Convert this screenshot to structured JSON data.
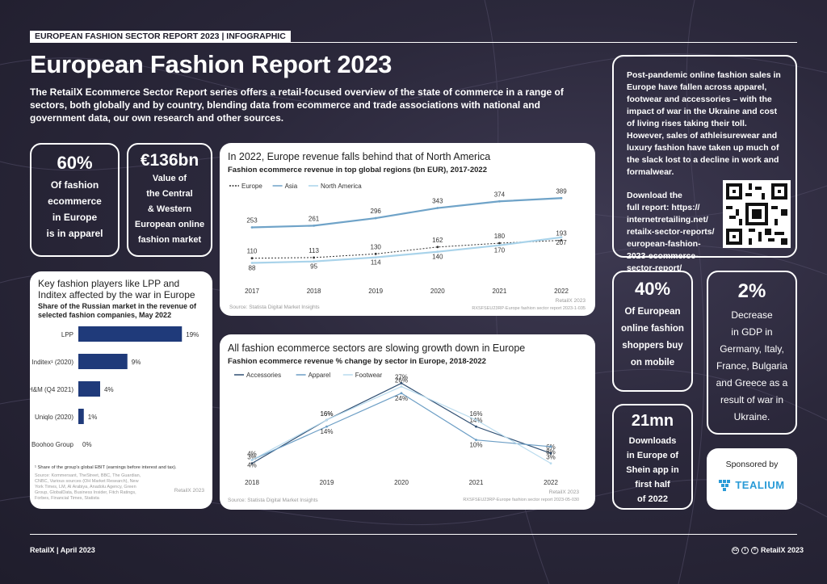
{
  "header": {
    "tag": "EUROPEAN FASHION SECTOR REPORT 2023 | INFOGRAPHIC",
    "title": "European Fashion Report 2023",
    "intro": "The RetailX Ecommerce Sector Report series offers a retail-focused overview of the state of commerce in a range of sectors, both globally and by country, blending data from ecommerce and trade associations with national and government data, our own research and other sources."
  },
  "stats": {
    "apparel": {
      "value": "60%",
      "lines": [
        "Of fashion",
        "ecommerce",
        "in Europe",
        "is in apparel"
      ]
    },
    "market": {
      "value": "€136bn",
      "lines": [
        "Value of",
        "the Central",
        "& Western",
        "European online",
        "fashion market"
      ]
    },
    "mobile": {
      "value": "40%",
      "lines": [
        "Of European",
        "online fashion",
        "shoppers buy",
        "on mobile"
      ]
    },
    "gdp": {
      "value": "2%",
      "lines": [
        "Decrease",
        "in GDP in",
        "Germany, Italy,",
        "France, Bulgaria",
        "and Greece as a",
        "result of war in",
        "Ukraine."
      ]
    },
    "shein": {
      "value": "21mn",
      "lines": [
        "Downloads",
        "in Europe of",
        "Shein app in",
        "first half",
        "of 2022"
      ]
    }
  },
  "sidebar": {
    "text": "Post-pandemic online fashion sales in Europe have fallen across apparel, footwear and accessories – with the impact of war in the Ukraine and cost of living rises taking their toll. However, sales of athleisurewear and luxury fashion have taken up much of the slack lost to a decline in work and formalwear.",
    "download": [
      "Download the",
      "full report: https://",
      "internetretailing.net/",
      "retailx-sector-reports/",
      "european-fashion-",
      "2023-ecommerce-",
      "sector-report/"
    ]
  },
  "sponsor": {
    "label": "Sponsored by",
    "name": "TEALIUM"
  },
  "footer": {
    "left": "RetailX | April 2023",
    "right": "RetailX 2023"
  },
  "charts": {
    "revenue": {
      "title": "In 2022, Europe revenue falls behind that of North America",
      "subtitle": "Fashion ecommerce revenue in top global regions (bn EUR), 2017-2022",
      "source": "Source: Statista Digital Market Insights",
      "ref": "RXSFSEU23RP-Europe fashion sector report 2023-1-035",
      "credit": "RetailX 2023"
    },
    "share": {
      "title": "Key fashion players like LPP and Inditex affected by the war in Europe",
      "subtitle": "Share of the Russian market in the revenue of selected fashion companies, May 2022",
      "note": "¹ Share of the group's global EBIT (earnings before interest and tax).",
      "source": "Source: Kommersant, TheStreet, BBC, The Guardian, CNBC, Various sources (OH Market Research), New York Times, LM, Al Arabiya, Anadolu Agency, Green Group, GlobalData, Business Insider, Fitch Ratings, Forbes, Financial Times, Statista",
      "credit": "RetailX 2023"
    },
    "growth": {
      "title": "All fashion ecommerce sectors are slowing growth down in Europe",
      "subtitle": "Fashion ecommerce revenue % change by sector in Europe, 2018-2022",
      "source": "Source: Statista Digital Market Insights",
      "ref": "RXSFSEU23RP-Europe fashion sector report 2023-05-030",
      "credit": "RetailX 2023"
    }
  },
  "chart_data": [
    {
      "type": "line",
      "title": "In 2022, Europe revenue falls behind that of North America",
      "x": [
        "2017",
        "2018",
        "2019",
        "2020",
        "2021",
        "2022"
      ],
      "series": [
        {
          "name": "Europe",
          "values": [
            110,
            113,
            130,
            162,
            180,
            193
          ],
          "color": "#333333"
        },
        {
          "name": "Asia",
          "values": [
            253,
            261,
            296,
            343,
            374,
            389
          ],
          "color": "#6fa3c8"
        },
        {
          "name": "North America",
          "values": [
            88,
            95,
            114,
            140,
            170,
            207
          ],
          "color": "#a9d3ea"
        }
      ],
      "ylim": [
        0,
        420
      ],
      "legend": "top-left"
    },
    {
      "type": "bar",
      "title": "Key fashion players like LPP and Inditex affected by the war in Europe",
      "categories": [
        "LPP",
        "Inditex¹ (2020)",
        "H&M (Q4 2021)",
        "Uniqlo (2020)",
        "Boohoo Group"
      ],
      "values": [
        19,
        9,
        4,
        1,
        0
      ],
      "unit": "%",
      "color": "#1f3a7a"
    },
    {
      "type": "line",
      "title": "All fashion ecommerce sectors are slowing growth down in Europe",
      "x": [
        "2018",
        "2019",
        "2020",
        "2021",
        "2022"
      ],
      "series": [
        {
          "name": "Accessories",
          "values": [
            3,
            16,
            27,
            14,
            6
          ],
          "color": "#2f4f73"
        },
        {
          "name": "Apparel",
          "values": [
            4,
            14,
            24,
            10,
            8
          ],
          "color": "#6c9ec5"
        },
        {
          "name": "Footwear",
          "values": [
            4,
            16,
            26,
            16,
            3
          ],
          "color": "#b9dbee"
        }
      ],
      "unit": "%",
      "ylim": [
        0,
        30
      ],
      "legend": "top-left"
    }
  ]
}
